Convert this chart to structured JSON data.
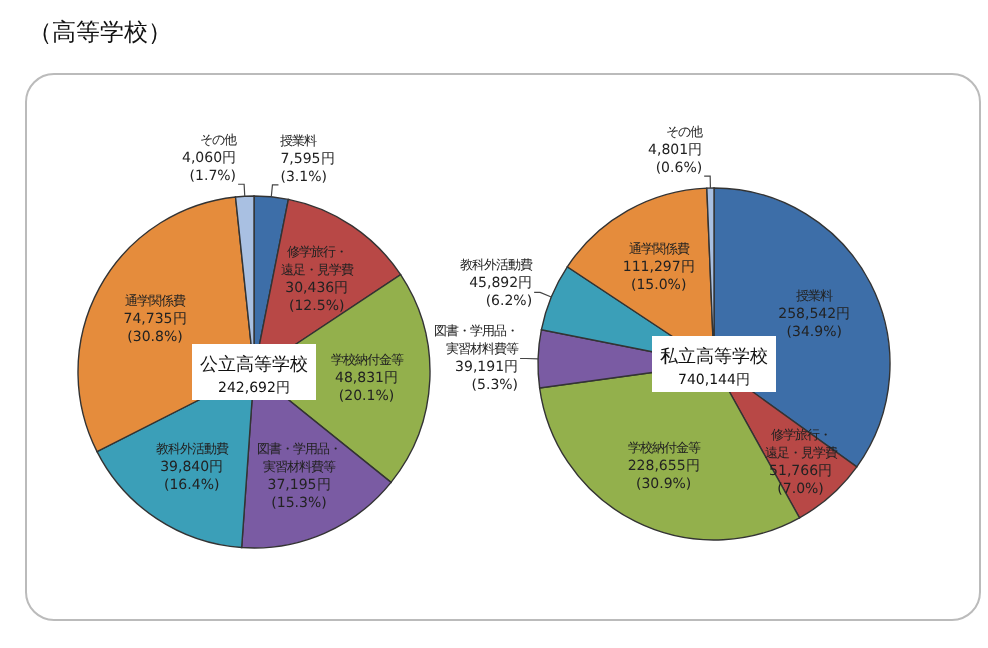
{
  "chart_data": [
    {
      "type": "pie",
      "title": "公立高等学校",
      "subtitle": "242,692円",
      "annotations": [
        "（高等学校）"
      ],
      "categories": [
        "授業料",
        "修学旅行・遠足・見学費",
        "学校納付金等",
        "図書・学用品・実習材料費等",
        "教科外活動費",
        "通学関係費",
        "その他"
      ],
      "values": [
        7595,
        30436,
        48831,
        37195,
        39840,
        74735,
        4060
      ],
      "colors": [
        "#3d6ea8",
        "#b84846",
        "#93b04c",
        "#7a5ba3",
        "#3b9fb8",
        "#e58c3c",
        "#a9c0e2"
      ],
      "value_labels": [
        "7,595円 (3.1%)",
        "30,436円 (12.5%)",
        "48,831円 (20.1%)",
        "37,195円 (15.3%)",
        "39,840円 (16.4%)",
        "74,735円 (30.8%)",
        "4,060円 (1.7%)"
      ]
    },
    {
      "type": "pie",
      "title": "私立高等学校",
      "subtitle": "740,144円",
      "categories": [
        "授業料",
        "修学旅行・遠足・見学費",
        "学校納付金等",
        "図書・学用品・実習材料費等",
        "教科外活動費",
        "通学関係費",
        "その他"
      ],
      "values": [
        258542,
        51766,
        228655,
        39191,
        45892,
        111297,
        4801
      ],
      "colors": [
        "#3d6ea8",
        "#b84846",
        "#93b04c",
        "#7a5ba3",
        "#3b9fb8",
        "#e58c3c",
        "#a9c0e2"
      ],
      "value_labels": [
        "258,542円 (34.9%)",
        "51,766円 (7.0%)",
        "228,655円 (30.9%)",
        "39,191円 (5.3%)",
        "45,892円 (6.2%)",
        "111,297円 (15.0%)",
        "4,801円 (0.6%)"
      ]
    }
  ]
}
